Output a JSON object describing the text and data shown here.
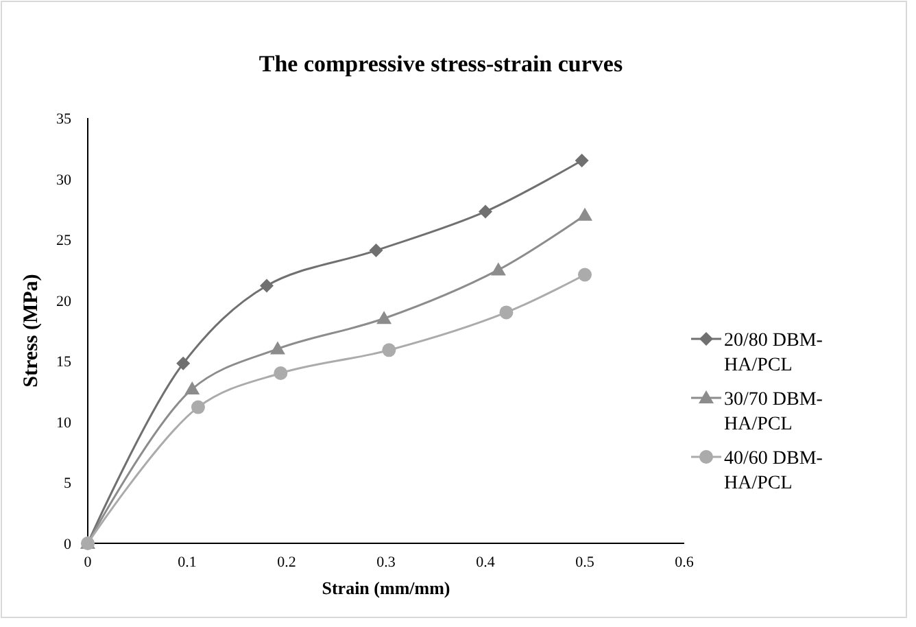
{
  "chart_data": {
    "type": "line",
    "title": "The compressive stress-strain curves",
    "xlabel": "Strain (mm/mm)",
    "ylabel": "Stress (MPa)",
    "xlim": [
      0,
      0.6
    ],
    "xticks": [
      0,
      0.1,
      0.2,
      0.3,
      0.4,
      0.5,
      0.6
    ],
    "ylim": [
      0,
      35
    ],
    "yticks": [
      0,
      5,
      10,
      15,
      20,
      25,
      30,
      35
    ],
    "grid": false,
    "legend": "right",
    "series": [
      {
        "name": "20/80 DBM-HA/PCL",
        "color": "#707070",
        "marker": "diamond",
        "x": [
          0,
          0.096,
          0.18,
          0.29,
          0.4,
          0.497
        ],
        "values": [
          0,
          14.8,
          21.2,
          24.1,
          27.3,
          31.5
        ]
      },
      {
        "name": "30/70 DBM-HA/PCL",
        "color": "#8c8c8c",
        "marker": "triangle",
        "x": [
          0,
          0.105,
          0.191,
          0.298,
          0.413,
          0.5
        ],
        "values": [
          0,
          12.7,
          16.0,
          18.5,
          22.5,
          27.0
        ]
      },
      {
        "name": "40/60 DBM-HA/PCL",
        "color": "#ababab",
        "marker": "circle",
        "x": [
          0,
          0.111,
          0.194,
          0.303,
          0.421,
          0.5
        ],
        "values": [
          0,
          11.2,
          14.0,
          15.9,
          19.0,
          22.1
        ]
      }
    ]
  }
}
